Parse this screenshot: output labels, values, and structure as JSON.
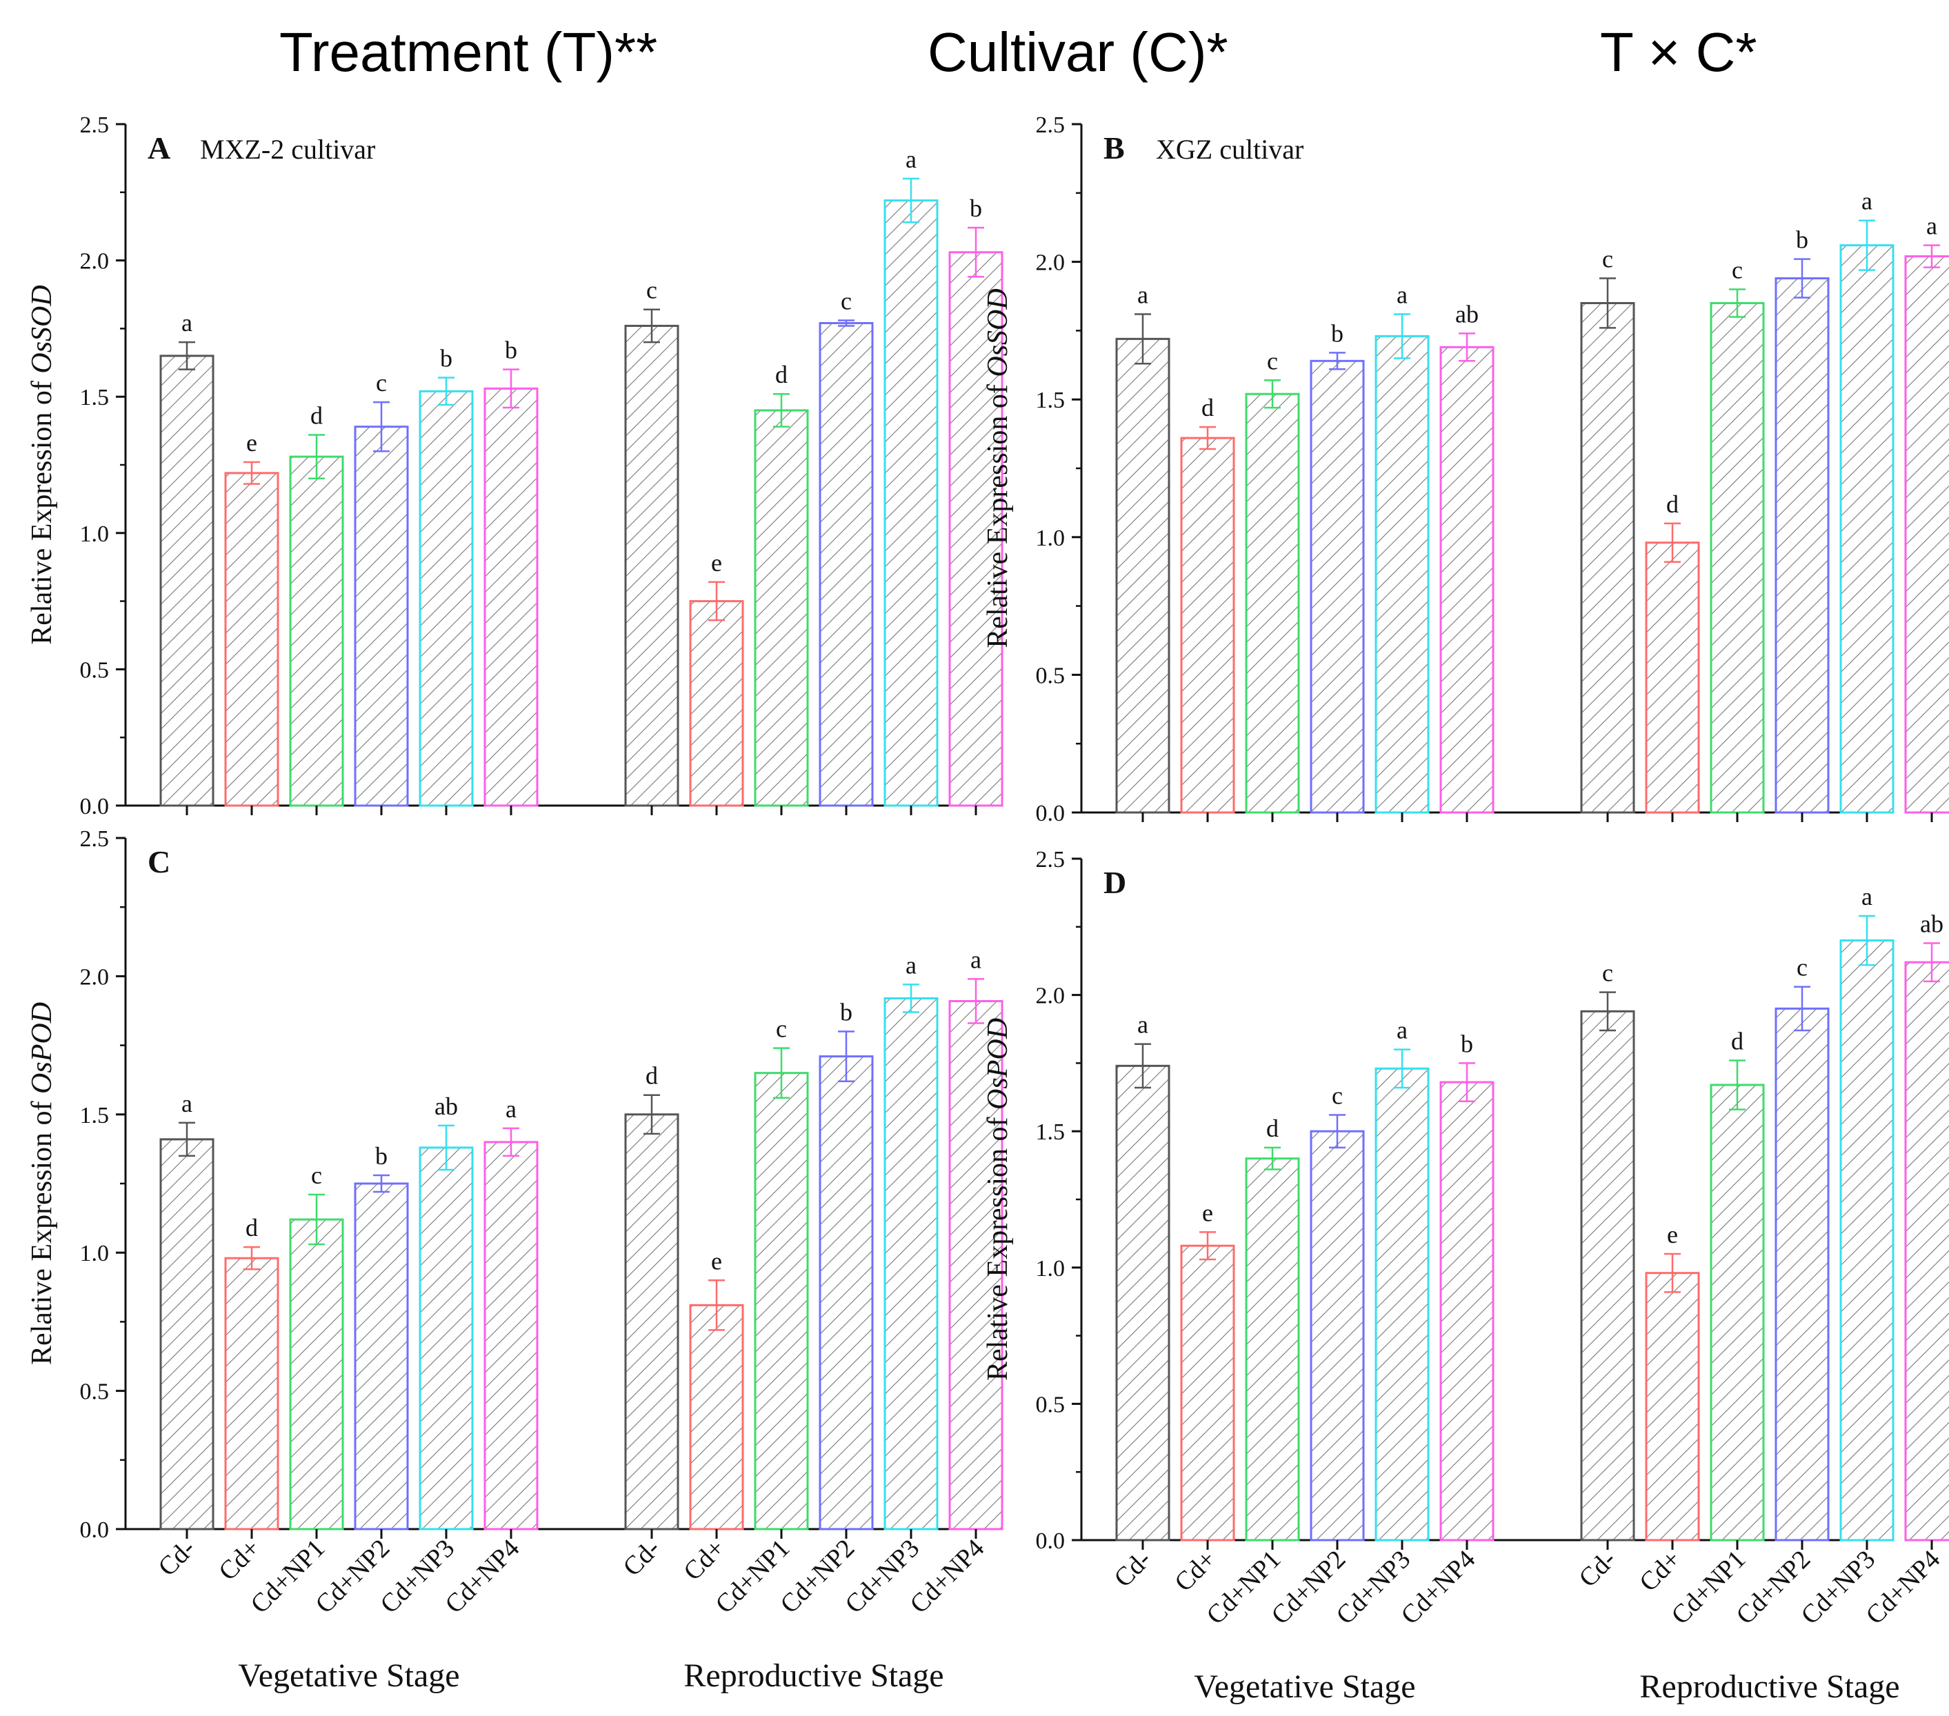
{
  "header": {
    "treatment": "Treatment (T)**",
    "cultivar": "Cultivar (C)*",
    "interaction": "T × C*"
  },
  "chart_data": [
    {
      "type": "bar",
      "panel": "A",
      "title": "MXZ-2  cultivar",
      "ylabel_prefix": "Relative Expression of ",
      "ylabel_gene": "OsSOD",
      "ylim": [
        0,
        2.5
      ],
      "yticks": [
        "0.0",
        "0.5",
        "1.0",
        "1.5",
        "2.0",
        "2.5"
      ],
      "categories": [
        "Cd-",
        "Cd+",
        "Cd+NP1",
        "Cd+NP2",
        "Cd+NP3",
        "Cd+NP4"
      ],
      "groups": [
        {
          "name": "Vegetative Stage",
          "values": [
            1.65,
            1.22,
            1.28,
            1.39,
            1.52,
            1.53
          ],
          "errors": [
            0.05,
            0.04,
            0.08,
            0.09,
            0.05,
            0.07
          ],
          "letters": [
            "a",
            "e",
            "d",
            "c",
            "b",
            "b"
          ]
        },
        {
          "name": "Reproductive Stage",
          "values": [
            1.76,
            0.75,
            1.45,
            1.77,
            2.22,
            2.03
          ],
          "errors": [
            0.06,
            0.07,
            0.06,
            0.01,
            0.08,
            0.09
          ],
          "letters": [
            "c",
            "e",
            "d",
            "c",
            "a",
            "b"
          ]
        }
      ]
    },
    {
      "type": "bar",
      "panel": "B",
      "title": "XGZ  cultivar",
      "ylabel_prefix": "Relative Expression of ",
      "ylabel_gene": "OsSOD",
      "ylim": [
        0,
        2.5
      ],
      "yticks": [
        "0.0",
        "0.5",
        "1.0",
        "1.5",
        "2.0",
        "2.5"
      ],
      "categories": [
        "Cd-",
        "Cd+",
        "Cd+NP1",
        "Cd+NP2",
        "Cd+NP3",
        "Cd+NP4"
      ],
      "groups": [
        {
          "name": "Vegetative Stage",
          "values": [
            1.72,
            1.36,
            1.52,
            1.64,
            1.73,
            1.69
          ],
          "errors": [
            0.09,
            0.04,
            0.05,
            0.03,
            0.08,
            0.05
          ],
          "letters": [
            "a",
            "d",
            "c",
            "b",
            "a",
            "ab"
          ]
        },
        {
          "name": "Reproductive Stage",
          "values": [
            1.85,
            0.98,
            1.85,
            1.94,
            2.06,
            2.02
          ],
          "errors": [
            0.09,
            0.07,
            0.05,
            0.07,
            0.09,
            0.04
          ],
          "letters": [
            "c",
            "d",
            "c",
            "b",
            "a",
            "a"
          ]
        }
      ]
    },
    {
      "type": "bar",
      "panel": "C",
      "title": "",
      "ylabel_prefix": "Relative Expression of ",
      "ylabel_gene": "OsPOD",
      "ylim": [
        0,
        2.5
      ],
      "yticks": [
        "0.0",
        "0.5",
        "1.0",
        "1.5",
        "2.0",
        "2.5"
      ],
      "categories": [
        "Cd-",
        "Cd+",
        "Cd+NP1",
        "Cd+NP2",
        "Cd+NP3",
        "Cd+NP4"
      ],
      "groups": [
        {
          "name": "Vegetative Stage",
          "values": [
            1.41,
            0.98,
            1.12,
            1.25,
            1.38,
            1.4
          ],
          "errors": [
            0.06,
            0.04,
            0.09,
            0.03,
            0.08,
            0.05
          ],
          "letters": [
            "a",
            "d",
            "c",
            "b",
            "ab",
            "a"
          ]
        },
        {
          "name": "Reproductive Stage",
          "values": [
            1.5,
            0.81,
            1.65,
            1.71,
            1.92,
            1.91
          ],
          "errors": [
            0.07,
            0.09,
            0.09,
            0.09,
            0.05,
            0.08
          ],
          "letters": [
            "d",
            "e",
            "c",
            "b",
            "a",
            "a"
          ]
        }
      ]
    },
    {
      "type": "bar",
      "panel": "D",
      "title": "",
      "ylabel_prefix": "Relative Expression of ",
      "ylabel_gene": "OsPOD",
      "ylim": [
        0,
        2.5
      ],
      "yticks": [
        "0.0",
        "0.5",
        "1.0",
        "1.5",
        "2.0",
        "2.5"
      ],
      "categories": [
        "Cd-",
        "Cd+",
        "Cd+NP1",
        "Cd+NP2",
        "Cd+NP3",
        "Cd+NP4"
      ],
      "groups": [
        {
          "name": "Vegetative Stage",
          "values": [
            1.74,
            1.08,
            1.4,
            1.5,
            1.73,
            1.68
          ],
          "errors": [
            0.08,
            0.05,
            0.04,
            0.06,
            0.07,
            0.07
          ],
          "letters": [
            "a",
            "e",
            "d",
            "c",
            "a",
            "b"
          ]
        },
        {
          "name": "Reproductive Stage",
          "values": [
            1.94,
            0.98,
            1.67,
            1.95,
            2.2,
            2.12
          ],
          "errors": [
            0.07,
            0.07,
            0.09,
            0.08,
            0.09,
            0.07
          ],
          "letters": [
            "c",
            "e",
            "d",
            "c",
            "a",
            "ab"
          ]
        }
      ]
    }
  ],
  "colors": {
    "series": [
      "#555555",
      "#ff6b6b",
      "#3ddc6a",
      "#6f6fff",
      "#34e0f0",
      "#ff5ee8"
    ],
    "axis": "#111111",
    "background": "#ffffff"
  }
}
